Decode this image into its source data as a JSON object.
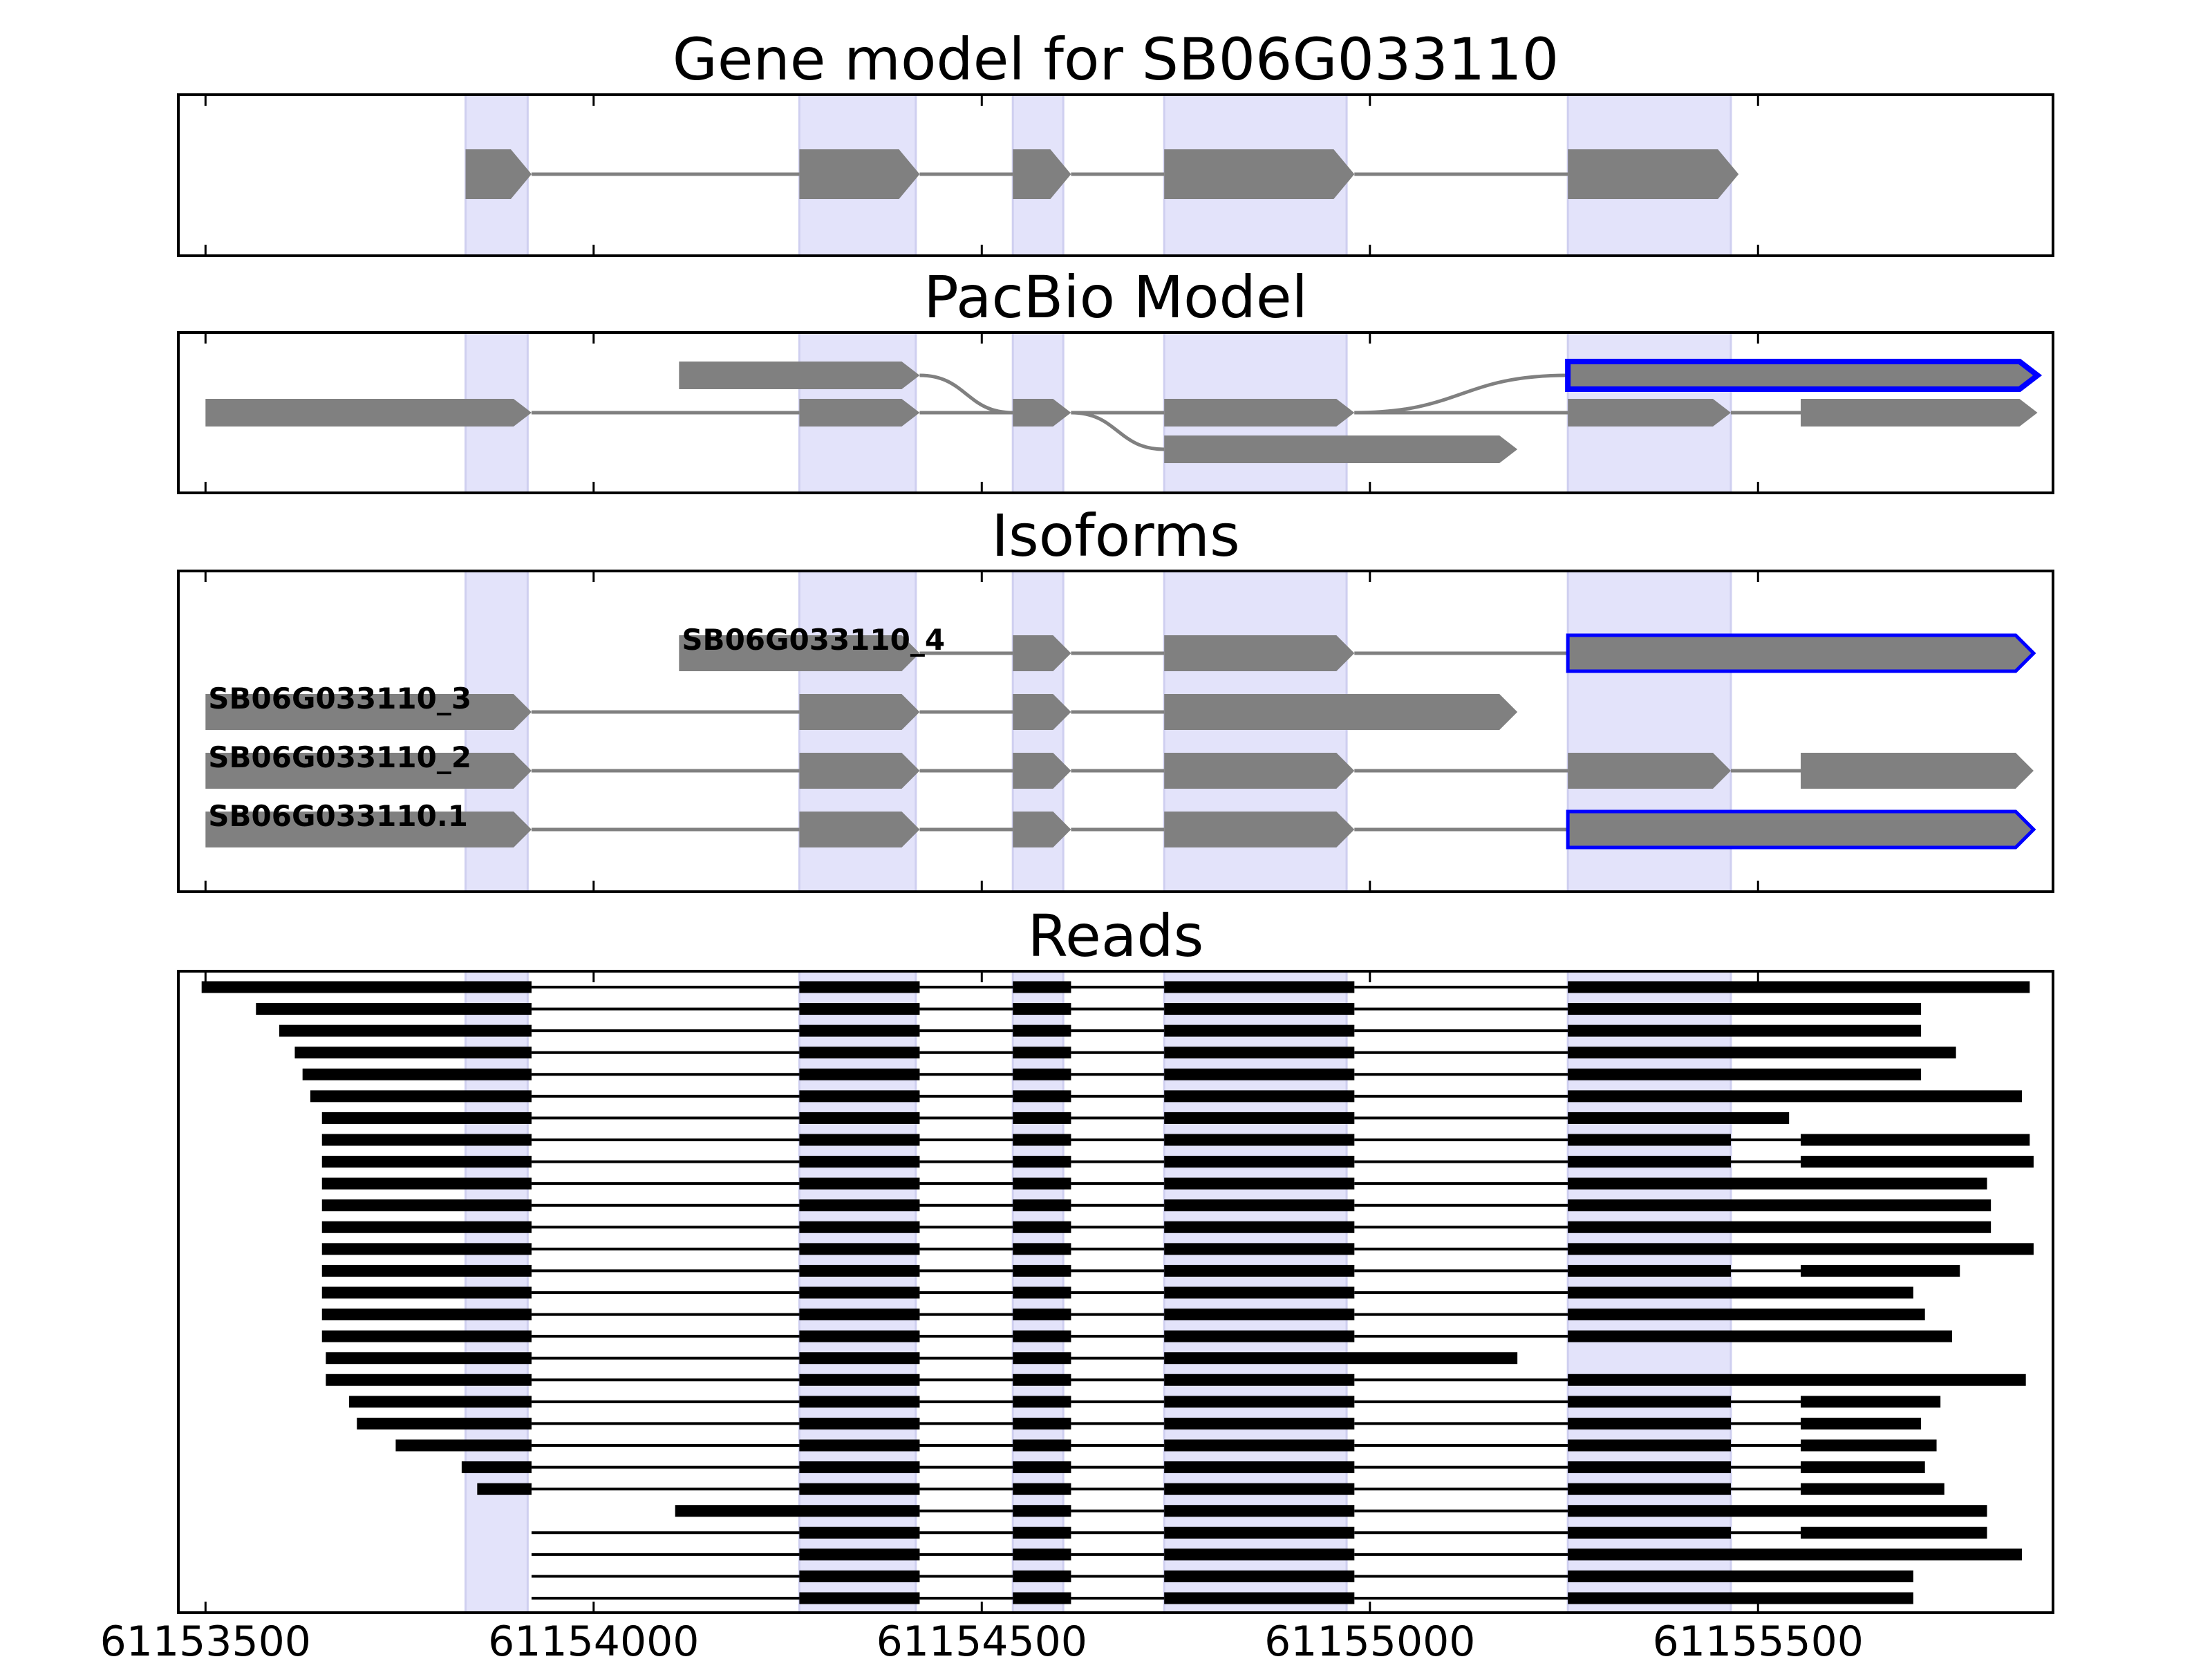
{
  "chart_data": [
    {
      "type": "gene-track",
      "title": "Gene model for SB06G033110",
      "xlim": [
        61153465,
        61155880
      ],
      "highlight_regions": [
        [
          61153835,
          61153915
        ],
        [
          61154265,
          61154415
        ],
        [
          61154540,
          61154605
        ],
        [
          61154735,
          61154970
        ],
        [
          61155255,
          61155465
        ]
      ],
      "tracks": [
        {
          "exons": [
            [
              61153835,
              61153920
            ],
            [
              61154265,
              61154420
            ],
            [
              61154540,
              61154615
            ],
            [
              61154735,
              61154980
            ],
            [
              61155255,
              61155475
            ]
          ],
          "strand": "+"
        }
      ]
    },
    {
      "type": "gene-track",
      "title": "PacBio Model",
      "xlim": [
        61153465,
        61155880
      ],
      "highlight_regions": [
        [
          61153835,
          61153915
        ],
        [
          61154265,
          61154415
        ],
        [
          61154540,
          61154605
        ],
        [
          61154735,
          61154970
        ],
        [
          61155255,
          61155465
        ]
      ],
      "tracks": [
        {
          "row": 0,
          "exons": [
            [
              61154110,
              61154420
            ],
            [
              61155255,
              61155860
            ]
          ],
          "strand": "+",
          "highlight": true
        },
        {
          "row": 1,
          "exons": [
            [
              61153500,
              61153920
            ],
            [
              61154265,
              61154420
            ],
            [
              61154540,
              61154615
            ],
            [
              61154735,
              61154980
            ],
            [
              61155255,
              61155465
            ],
            [
              61155555,
              61155860
            ]
          ],
          "strand": "+"
        },
        {
          "row": 2,
          "exons": [
            [
              61154735,
              61155190
            ]
          ],
          "strand": "+"
        }
      ]
    },
    {
      "type": "gene-track",
      "title": "Isoforms",
      "xlim": [
        61153465,
        61155880
      ],
      "highlight_regions": [
        [
          61153835,
          61153915
        ],
        [
          61154265,
          61154415
        ],
        [
          61154540,
          61154605
        ],
        [
          61154735,
          61154970
        ],
        [
          61155255,
          61155465
        ]
      ],
      "tracks": [
        {
          "name": "SB06G033110_4",
          "exons": [
            [
              61154110,
              61154420
            ],
            [
              61154540,
              61154615
            ],
            [
              61154735,
              61154980
            ],
            [
              61155255,
              61155855
            ]
          ],
          "strand": "+",
          "last_exon_outlined": true
        },
        {
          "name": "SB06G033110_3",
          "exons": [
            [
              61153500,
              61153920
            ],
            [
              61154265,
              61154420
            ],
            [
              61154540,
              61154615
            ],
            [
              61154735,
              61155190
            ]
          ],
          "strand": "+"
        },
        {
          "name": "SB06G033110_2",
          "exons": [
            [
              61153500,
              61153920
            ],
            [
              61154265,
              61154420
            ],
            [
              61154540,
              61154615
            ],
            [
              61154735,
              61154980
            ],
            [
              61155255,
              61155465
            ],
            [
              61155555,
              61155855
            ]
          ],
          "strand": "+"
        },
        {
          "name": "SB06G033110.1",
          "exons": [
            [
              61153500,
              61153920
            ],
            [
              61154265,
              61154420
            ],
            [
              61154540,
              61154615
            ],
            [
              61154735,
              61154980
            ],
            [
              61155255,
              61155855
            ]
          ],
          "strand": "+",
          "last_exon_outlined": true
        }
      ]
    },
    {
      "type": "read-alignment",
      "title": "Reads",
      "xlim": [
        61153465,
        61155880
      ],
      "xticks": [
        61153500,
        61154000,
        61154500,
        61155000,
        61155500
      ],
      "xtick_labels": [
        "61153500",
        "61154000",
        "61154500",
        "61155000",
        "61155500"
      ],
      "highlight_regions": [
        [
          61153835,
          61153915
        ],
        [
          61154265,
          61154415
        ],
        [
          61154540,
          61154605
        ],
        [
          61154735,
          61154970
        ],
        [
          61155255,
          61155465
        ]
      ],
      "reads": [
        [
          61153495,
          61155850,
          "A"
        ],
        [
          61153565,
          61155710,
          "A"
        ],
        [
          61153595,
          61155710,
          "A"
        ],
        [
          61153615,
          61155755,
          "A"
        ],
        [
          61153625,
          61155710,
          "A"
        ],
        [
          61153635,
          61155840,
          "A"
        ],
        [
          61153650,
          61155540,
          "A"
        ],
        [
          61153650,
          61155850,
          "B"
        ],
        [
          61153650,
          61155855,
          "B"
        ],
        [
          61153650,
          61155795,
          "A"
        ],
        [
          61153650,
          61155800,
          "A"
        ],
        [
          61153650,
          61155800,
          "A"
        ],
        [
          61153650,
          61155855,
          "A"
        ],
        [
          61153650,
          61155760,
          "B"
        ],
        [
          61153650,
          61155700,
          "A"
        ],
        [
          61153650,
          61155715,
          "A"
        ],
        [
          61153650,
          61155750,
          "A"
        ],
        [
          61153655,
          61155190,
          "C"
        ],
        [
          61153655,
          61155845,
          "A"
        ],
        [
          61153685,
          61155735,
          "B"
        ],
        [
          61153695,
          61155710,
          "B"
        ],
        [
          61153745,
          61155730,
          "B"
        ],
        [
          61153830,
          61155715,
          "B"
        ],
        [
          61153850,
          61155740,
          "B"
        ],
        [
          61154105,
          61155795,
          "D"
        ],
        [
          61154265,
          61155795,
          "B"
        ],
        [
          61154265,
          61155840,
          "A"
        ],
        [
          61154310,
          61155700,
          "A"
        ],
        [
          61154310,
          61155700,
          "A"
        ]
      ]
    }
  ]
}
